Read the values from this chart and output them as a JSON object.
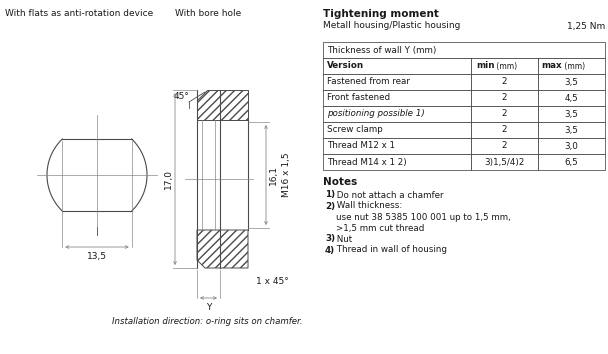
{
  "title_left1": "With flats as anti-rotation device",
  "title_left2": "With bore hole",
  "tightening_title": "Tightening moment",
  "tightening_subtitle": "Metall housing/Plastic housing",
  "tightening_value": "1,25 Nm",
  "angle_label": "45°",
  "dim_170": "17,0",
  "dim_161": "16,1",
  "dim_thread": "M16 x 1,5",
  "dim_135": "13,5",
  "dim_1x45": "1 x 45°",
  "dim_y": "Y",
  "install_note": "Installation direction: o-ring sits on chamfer.",
  "table_header": "Thickness of wall Y (mm)",
  "col_version": "Version",
  "col_min": "min",
  "col_min_unit": " (mm)",
  "col_max": "max",
  "col_max_unit": " (mm)",
  "table_rows": [
    [
      "Fastened from rear",
      "2",
      "3,5"
    ],
    [
      "Front fastened",
      "2",
      "4,5"
    ],
    [
      "positioning possible 1)",
      "2",
      "3,5"
    ],
    [
      "Screw clamp",
      "2",
      "3,5"
    ],
    [
      "Thread M12 x 1",
      "2",
      "3,0"
    ],
    [
      "Thread M14 x 1 2)",
      "3)1,5/4)2",
      "6,5"
    ]
  ],
  "notes_title": "Notes",
  "notes": [
    [
      "1)",
      " Do not attach a chamfer"
    ],
    [
      "2)",
      " Wall thickness:"
    ],
    [
      "",
      "    use nut 38 5385 100 001 up to 1,5 mm,"
    ],
    [
      "",
      "    >1,5 mm cut thread"
    ],
    [
      "3)",
      " Nut"
    ],
    [
      "4)",
      " Thread in wall of housing"
    ]
  ],
  "bg_color": "#ffffff",
  "line_color": "#4a4a4a",
  "dim_color": "#888888",
  "text_color": "#1a1a1a"
}
